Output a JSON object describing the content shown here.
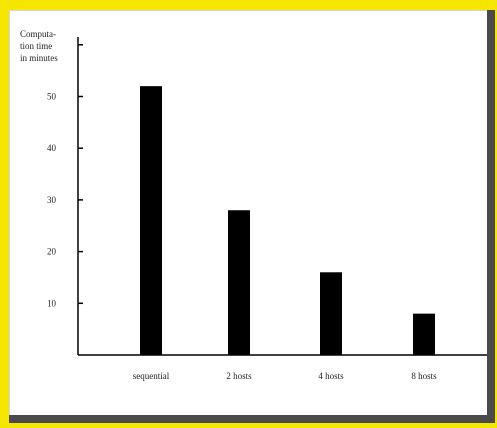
{
  "chart_data": {
    "type": "bar",
    "title": "",
    "xlabel": "",
    "ylabel_lines": [
      "Computa-",
      "tion time",
      "in minutes"
    ],
    "categories": [
      "sequential",
      "2 hosts",
      "4 hosts",
      "8 hosts"
    ],
    "values": [
      52,
      28,
      16,
      8
    ],
    "yticks": [
      10,
      20,
      30,
      40,
      50
    ],
    "ylim": [
      0,
      60
    ],
    "grid": false,
    "bar_color": "#000000"
  },
  "colors": {
    "frame": "#f5e600",
    "shadow": "#4a4a4a"
  }
}
